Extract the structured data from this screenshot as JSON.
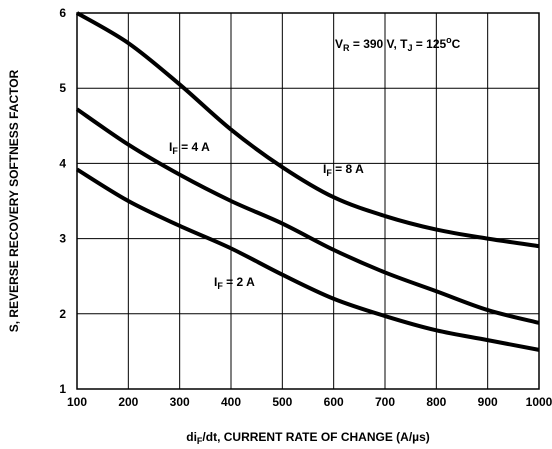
{
  "chart_data": {
    "type": "line",
    "xlabel": {
      "prefix": "di",
      "sub": "F",
      "rest": "/dt, CURRENT RATE OF CHANGE (A/µs)"
    },
    "ylabel": "S, REVERSE RECOVERY SOFTNESS FACTOR",
    "xlim": [
      100,
      1000
    ],
    "ylim": [
      1,
      6
    ],
    "x_ticks": [
      "100",
      "200",
      "300",
      "400",
      "500",
      "600",
      "700",
      "800",
      "900",
      "1000"
    ],
    "y_ticks": [
      "1",
      "2",
      "3",
      "4",
      "5",
      "6"
    ],
    "grid": true,
    "conditions": {
      "v_main": "V",
      "v_sub": "R",
      "v_val": " = 390 V, T",
      "t_sub": "J",
      "t_val": " = 125",
      "t_sup": "o",
      "t_unit": "C"
    },
    "series": [
      {
        "name": {
          "main": "I",
          "sub": "F",
          "rest": " = 8 A"
        },
        "x": [
          100,
          200,
          300,
          400,
          500,
          600,
          700,
          800,
          900,
          1000
        ],
        "y": [
          6.0,
          5.6,
          5.05,
          4.45,
          3.95,
          3.55,
          3.3,
          3.12,
          3.0,
          2.9
        ]
      },
      {
        "name": {
          "main": "I",
          "sub": "F",
          "rest": " = 4 A"
        },
        "x": [
          100,
          200,
          300,
          400,
          500,
          600,
          700,
          800,
          900,
          1000
        ],
        "y": [
          4.72,
          4.25,
          3.85,
          3.5,
          3.2,
          2.85,
          2.55,
          2.3,
          2.05,
          1.88
        ]
      },
      {
        "name": {
          "main": "I",
          "sub": "F",
          "rest": " = 2 A"
        },
        "x": [
          100,
          200,
          300,
          400,
          500,
          600,
          700,
          800,
          900,
          1000
        ],
        "y": [
          3.92,
          3.5,
          3.17,
          2.87,
          2.52,
          2.2,
          1.97,
          1.78,
          1.65,
          1.52
        ]
      }
    ]
  }
}
